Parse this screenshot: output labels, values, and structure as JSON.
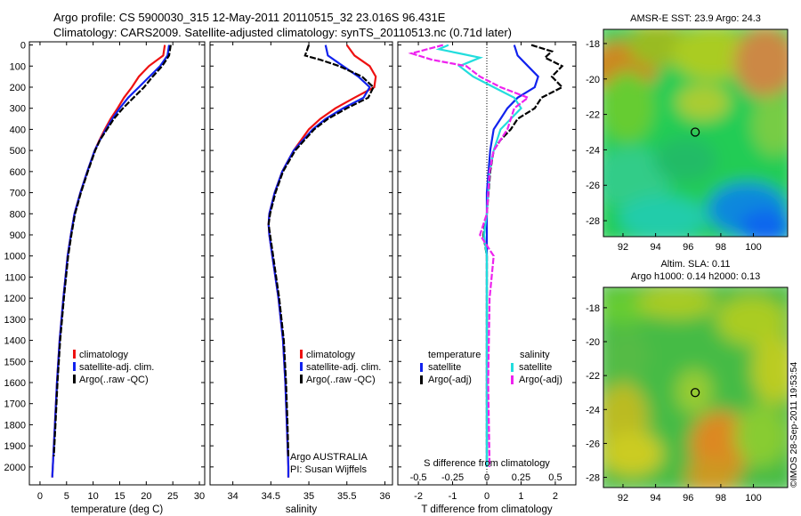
{
  "header": {
    "line1": "Argo profile: CS 5900030_315 12-May-2011 20110515_32 23.016S 96.431E",
    "line2": "Climatology: CARS2009. Satellite-adjusted climatology: synTS_20110513.nc (0.71d later)"
  },
  "colors": {
    "climatology": "#ee1111",
    "satellite": "#1122ee",
    "argo": "#000000",
    "salinity_satellite": "#22dddd",
    "salinity_argo": "#ee22ee"
  },
  "footer_credit": "©IMOS 28-Sep-2011 19:53:54",
  "chart_data": [
    {
      "type": "line",
      "xlabel": "temperature (deg C)",
      "ylabel": "",
      "xlim": [
        -2,
        31
      ],
      "ylim": [
        2080,
        0
      ],
      "x_ticks": [
        "0",
        "5",
        "10",
        "15",
        "20",
        "25",
        "30"
      ],
      "y_ticks": [
        "0",
        "100",
        "200",
        "300",
        "400",
        "500",
        "600",
        "700",
        "800",
        "900",
        "1000",
        "1100",
        "1200",
        "1300",
        "1400",
        "1500",
        "1600",
        "1700",
        "1800",
        "1900",
        "2000"
      ],
      "legend": [
        "climatology",
        "satellite-adj. clim.",
        "Argo(..raw -QC)"
      ],
      "series": [
        {
          "name": "climatology",
          "depth": [
            0,
            50,
            100,
            150,
            200,
            250,
            300,
            350,
            400,
            450,
            500,
            600,
            700,
            800,
            900,
            1000,
            1200,
            1400,
            1600,
            1800,
            2000,
            2050
          ],
          "values": [
            23.5,
            23.2,
            20.5,
            18.6,
            17.3,
            15.8,
            14.6,
            13.3,
            12.2,
            11.2,
            10.3,
            8.9,
            7.6,
            6.5,
            5.8,
            5.2,
            4.4,
            3.7,
            3.2,
            2.8,
            2.4,
            2.3
          ]
        },
        {
          "name": "satellite-adj. clim.",
          "depth": [
            0,
            50,
            100,
            150,
            200,
            250,
            300,
            350,
            400,
            450,
            500,
            600,
            700,
            800,
            900,
            1000,
            1200,
            1400,
            1600,
            1800,
            2000,
            2050
          ],
          "values": [
            24.3,
            24.0,
            22.6,
            20.6,
            18.6,
            16.6,
            15.0,
            13.6,
            12.4,
            11.3,
            10.3,
            8.9,
            7.6,
            6.5,
            5.8,
            5.2,
            4.4,
            3.7,
            3.2,
            2.8,
            2.4,
            2.3
          ]
        },
        {
          "name": "Argo(..raw -QC)",
          "depth": [
            0,
            50,
            100,
            150,
            200,
            250,
            300,
            350,
            400,
            450,
            500,
            600,
            700,
            800,
            900,
            1000,
            1200,
            1400,
            1600,
            1800,
            1950
          ],
          "values": [
            24.6,
            24.3,
            23.0,
            21.2,
            19.6,
            17.6,
            15.6,
            13.9,
            12.6,
            11.3,
            10.4,
            9.0,
            7.7,
            6.6,
            5.9,
            5.3,
            4.5,
            3.8,
            3.3,
            2.9,
            2.6
          ]
        }
      ]
    },
    {
      "type": "line",
      "xlabel": "salinity",
      "ylabel": "",
      "xlim": [
        33.7,
        36.1
      ],
      "ylim": [
        2080,
        0
      ],
      "x_ticks": [
        "34",
        "34.5",
        "35",
        "35.5",
        "36"
      ],
      "legend": [
        "climatology",
        "satellite-adj. clim.",
        "Argo(..raw -QC)"
      ],
      "annotation": [
        "Argo AUSTRALIA",
        "PI: Susan Wijffels"
      ],
      "series": [
        {
          "name": "climatology",
          "depth": [
            0,
            50,
            100,
            150,
            200,
            250,
            300,
            350,
            400,
            500,
            600,
            700,
            800,
            850,
            900,
            1000,
            1200,
            1400,
            1600,
            1800,
            2000,
            2050
          ],
          "values": [
            35.5,
            35.6,
            35.8,
            35.88,
            35.86,
            35.6,
            35.35,
            35.15,
            35.0,
            34.8,
            34.65,
            34.55,
            34.48,
            34.47,
            34.48,
            34.52,
            34.6,
            34.66,
            34.69,
            34.71,
            34.73,
            34.73
          ]
        },
        {
          "name": "satellite-adj. clim.",
          "depth": [
            0,
            50,
            100,
            150,
            200,
            250,
            300,
            350,
            400,
            500,
            600,
            700,
            800,
            850,
            900,
            1000,
            1200,
            1400,
            1600,
            1800,
            2000,
            2050
          ],
          "values": [
            35.22,
            35.25,
            35.45,
            35.65,
            35.8,
            35.72,
            35.45,
            35.22,
            35.05,
            34.8,
            34.65,
            34.55,
            34.48,
            34.47,
            34.48,
            34.52,
            34.6,
            34.66,
            34.69,
            34.71,
            34.73,
            34.73
          ]
        },
        {
          "name": "Argo(..raw -QC)",
          "depth": [
            0,
            50,
            70,
            100,
            150,
            200,
            250,
            300,
            350,
            400,
            500,
            600,
            700,
            800,
            850,
            900,
            1000,
            1200,
            1400,
            1600,
            1800,
            1950
          ],
          "values": [
            35.0,
            34.95,
            35.15,
            35.4,
            35.7,
            35.85,
            35.78,
            35.5,
            35.25,
            35.07,
            34.82,
            34.66,
            34.56,
            34.49,
            34.47,
            34.49,
            34.53,
            34.61,
            34.67,
            34.7,
            34.72,
            34.73
          ]
        }
      ]
    },
    {
      "type": "line",
      "xlabel": "T difference from climatology",
      "ylabel": "",
      "title_bottom": "S difference from climatology",
      "xlim": [
        -2.6,
        2.6
      ],
      "ylim": [
        2080,
        0
      ],
      "x_ticks": [
        "-2",
        "-1",
        "0",
        "1",
        "2"
      ],
      "x2_ticks": [
        "-0.5",
        "-0.25",
        "0",
        "0.25",
        "0.5"
      ],
      "legend_headers": [
        "temperature",
        "salinity"
      ],
      "legend": [
        "satellite",
        "Argo(-adj)",
        "satellite",
        "Argo(-adj)"
      ],
      "series": [
        {
          "name": "satellite",
          "depth": [
            0,
            50,
            100,
            150,
            200,
            250,
            300,
            350,
            400,
            500,
            600,
            700,
            800,
            900,
            1000,
            1200,
            1600,
            2000
          ],
          "values": [
            0.8,
            0.9,
            1.2,
            1.5,
            1.4,
            0.9,
            0.6,
            0.4,
            0.2,
            0.1,
            0.05,
            0.0,
            0.0,
            0.0,
            0.0,
            0.0,
            0.0,
            0.0
          ]
        },
        {
          "name": "Argo(-adj)",
          "depth": [
            0,
            30,
            60,
            100,
            150,
            200,
            250,
            300,
            350,
            400,
            450,
            500,
            600,
            700,
            800,
            900,
            1000,
            1200,
            1600,
            2000
          ],
          "values": [
            1.3,
            1.9,
            1.7,
            2.2,
            1.9,
            2.2,
            1.6,
            1.4,
            0.9,
            0.7,
            0.4,
            0.2,
            0.1,
            0.05,
            0.0,
            -0.1,
            0.0,
            0.0,
            0.0,
            0.0
          ]
        },
        {
          "name": "satellite",
          "depth": [
            0,
            20,
            40,
            60,
            100,
            150,
            200,
            250,
            300,
            400,
            500,
            600,
            800,
            900,
            1000,
            1200,
            1600,
            2000
          ],
          "values": [
            -0.28,
            -0.35,
            -0.2,
            -0.05,
            -0.2,
            -0.1,
            0.05,
            0.2,
            0.25,
            0.1,
            0.05,
            0.02,
            0.0,
            -0.02,
            0.0,
            0.0,
            0.0,
            0.0
          ]
        },
        {
          "name": "Argo(-adj)",
          "depth": [
            0,
            40,
            70,
            100,
            150,
            200,
            250,
            300,
            400,
            500,
            600,
            800,
            900,
            1000,
            1200,
            1600,
            2000
          ],
          "values": [
            -0.32,
            -0.55,
            -0.4,
            -0.15,
            -0.05,
            0.1,
            0.3,
            0.2,
            0.15,
            0.05,
            0.02,
            0.0,
            -0.05,
            0.05,
            0.02,
            0.01,
            0.02
          ]
        }
      ]
    },
    {
      "type": "heatmap",
      "title": "AMSR-E SST: 23.9  Argo: 24.3",
      "x_ticks": [
        "92",
        "94",
        "96",
        "98",
        "100"
      ],
      "y_ticks": [
        "-18",
        "-20",
        "-22",
        "-24",
        "-26",
        "-28"
      ],
      "marker": {
        "lon": 96.43,
        "lat": -23.0
      }
    },
    {
      "type": "heatmap",
      "title": "Altim. SLA: 0.11",
      "subtitle": "Argo h1000: 0.14 h2000: 0.13",
      "x_ticks": [
        "92",
        "94",
        "96",
        "98",
        "100"
      ],
      "y_ticks": [
        "-18",
        "-20",
        "-22",
        "-24",
        "-26",
        "-28"
      ],
      "marker": {
        "lon": 96.43,
        "lat": -23.0
      }
    }
  ]
}
